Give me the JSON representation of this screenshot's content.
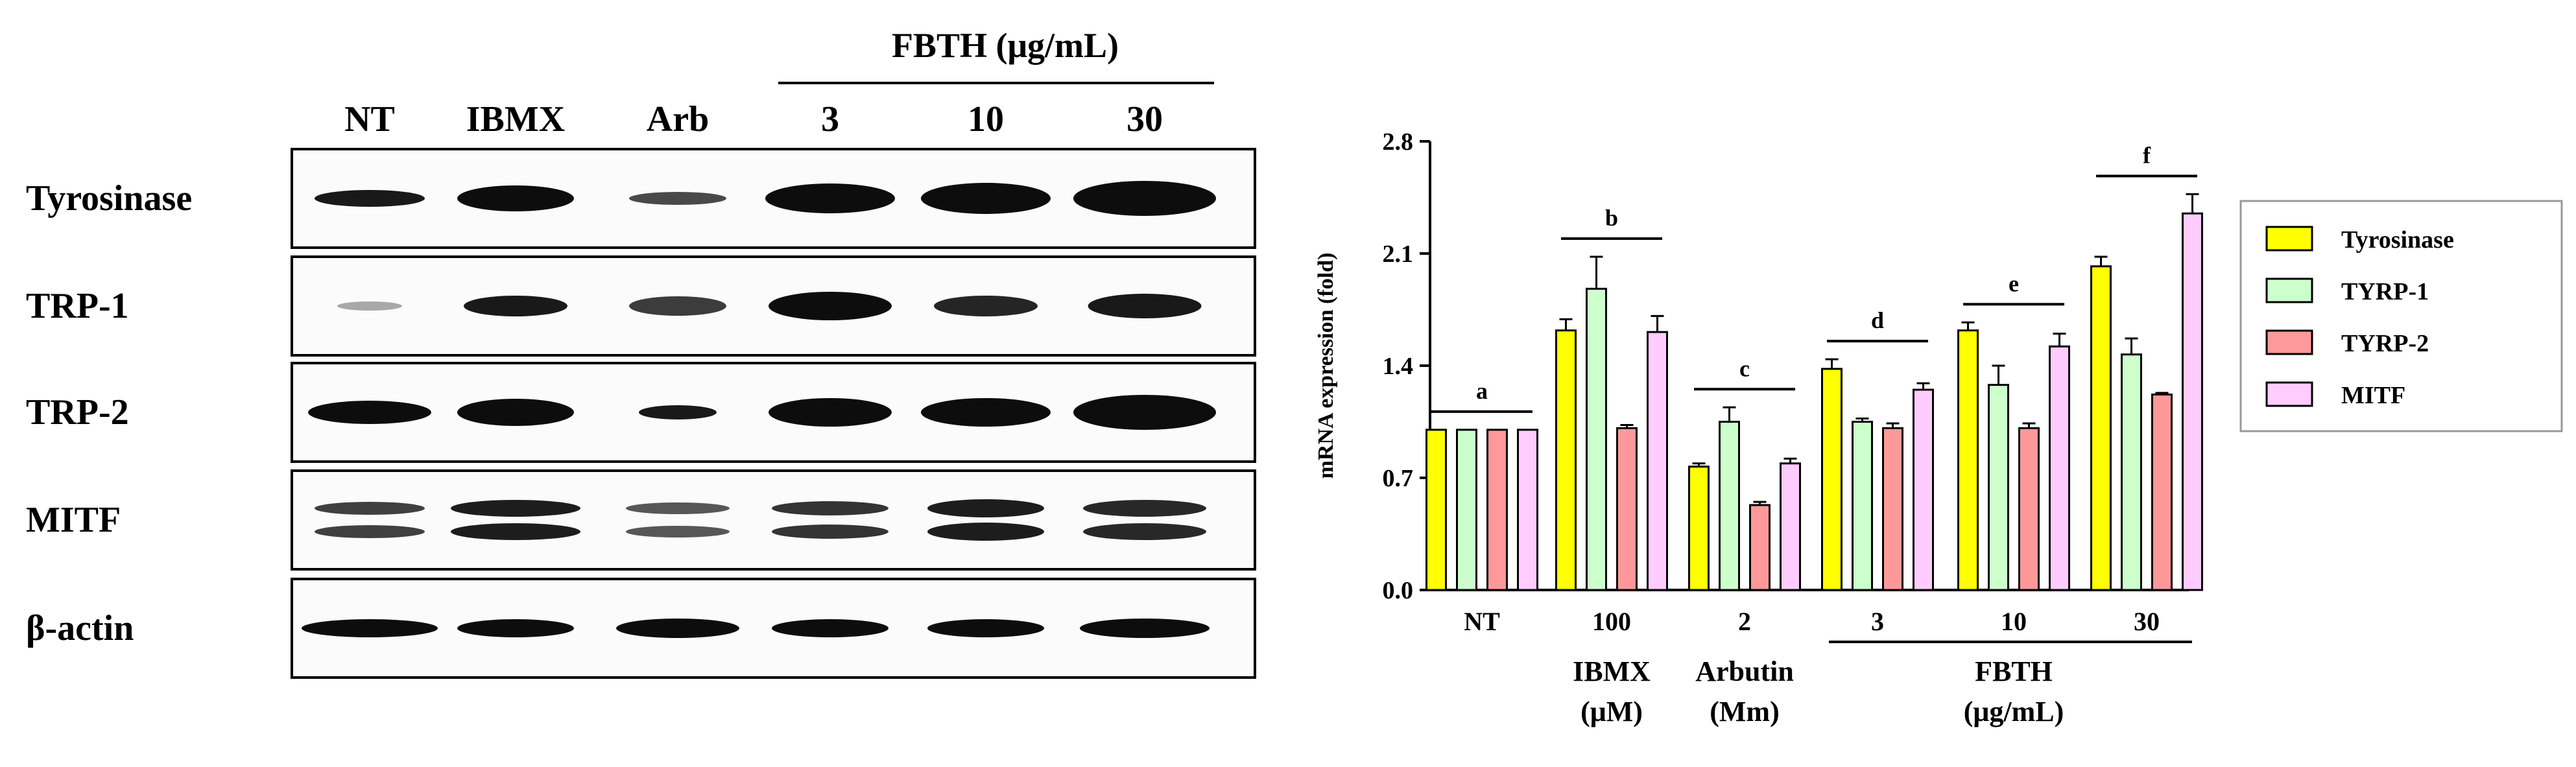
{
  "western_blot": {
    "group_header": "FBTH (μg/mL)",
    "lanes": [
      "NT",
      "IBMX",
      "Arb",
      "3",
      "10",
      "30"
    ],
    "proteins": [
      "Tyrosinase",
      "TRP-1",
      "TRP-2",
      "MITF",
      "β-actin"
    ]
  },
  "chart_data": {
    "type": "bar",
    "ylabel": "mRNA expression (fold)",
    "ylim": [
      0,
      2.8
    ],
    "yticks": [
      "0.0",
      "0.7",
      "1.4",
      "2.1",
      "2.8"
    ],
    "categories": [
      "NT",
      "100",
      "2",
      "3",
      "10",
      "30"
    ],
    "series": [
      {
        "name": "Tyrosinase",
        "color": "#ffff00",
        "values": [
          1.0,
          1.62,
          0.77,
          1.38,
          1.62,
          2.02
        ],
        "errors": [
          0,
          0.07,
          0.02,
          0.06,
          0.05,
          0.06
        ]
      },
      {
        "name": "TYRP-1",
        "color": "#ccffcc",
        "values": [
          1.0,
          1.88,
          1.05,
          1.05,
          1.28,
          1.47
        ],
        "errors": [
          0,
          0.2,
          0.09,
          0.02,
          0.12,
          0.1
        ]
      },
      {
        "name": "TYRP-2",
        "color": "#ff9999",
        "values": [
          1.0,
          1.01,
          0.53,
          1.01,
          1.01,
          1.22
        ],
        "errors": [
          0,
          0.02,
          0.02,
          0.03,
          0.03,
          0.01
        ]
      },
      {
        "name": "MITF",
        "color": "#ffccff",
        "values": [
          1.0,
          1.61,
          0.79,
          1.25,
          1.52,
          2.35
        ],
        "errors": [
          0,
          0.1,
          0.03,
          0.04,
          0.08,
          0.12
        ]
      }
    ],
    "significance_letters": [
      "a",
      "b",
      "c",
      "d",
      "e",
      "f"
    ],
    "group_labels": [
      {
        "text": "IBMX (μM)",
        "line1": "IBMX",
        "line2": "(μM)"
      },
      {
        "text": "Arbutin (Mm)",
        "line1": "Arbutin",
        "line2": "(Mm)"
      },
      {
        "text": "FBTH (μg/mL)",
        "line1": "FBTH",
        "line2": "(μg/mL)"
      }
    ],
    "legend_position": "right"
  }
}
